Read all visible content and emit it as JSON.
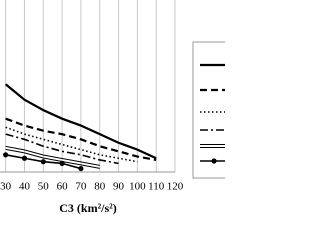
{
  "chart_data": {
    "type": "line",
    "xlabel": "C3 (km²/s²)",
    "xlim": [
      27,
      120
    ],
    "xticks": [
      30,
      40,
      50,
      60,
      70,
      80,
      90,
      100,
      110,
      120
    ],
    "ylim": [
      0,
      100
    ],
    "grid": true,
    "series": [
      {
        "color": "#000000",
        "dash": "solid",
        "width": 2.2,
        "marker": false,
        "x": [
          30,
          40,
          50,
          60,
          70,
          80,
          90,
          100,
          110
        ],
        "values": [
          51,
          42,
          36,
          31,
          27,
          22,
          17,
          13,
          8
        ]
      },
      {
        "color": "#000000",
        "dash": "dashed",
        "width": 2.2,
        "marker": false,
        "x": [
          30,
          40,
          50,
          60,
          70,
          80,
          90,
          100,
          110
        ],
        "values": [
          31,
          27,
          24,
          22,
          19,
          15,
          12,
          9,
          7
        ]
      },
      {
        "color": "#000000",
        "dash": "dotted",
        "width": 1.6,
        "marker": false,
        "x": [
          30,
          40,
          50,
          60,
          70,
          80,
          90,
          100
        ],
        "values": [
          26,
          22,
          19,
          16,
          13,
          10,
          8,
          6
        ]
      },
      {
        "color": "#000000",
        "dash": "dashdot",
        "width": 1.6,
        "marker": false,
        "x": [
          30,
          40,
          50,
          60,
          70,
          80,
          90
        ],
        "values": [
          22,
          19,
          15,
          12,
          10,
          7,
          5
        ]
      },
      {
        "color": "#000000",
        "dash": "double",
        "width": 1,
        "marker": false,
        "x": [
          30,
          40,
          50,
          60,
          70,
          80
        ],
        "values": [
          14,
          12,
          9,
          7,
          5,
          3
        ]
      },
      {
        "color": "#000000",
        "dash": "solid",
        "width": 1.6,
        "marker": true,
        "x": [
          30,
          40,
          50,
          60,
          70
        ],
        "values": [
          10,
          8,
          6,
          5,
          2
        ]
      }
    ]
  }
}
